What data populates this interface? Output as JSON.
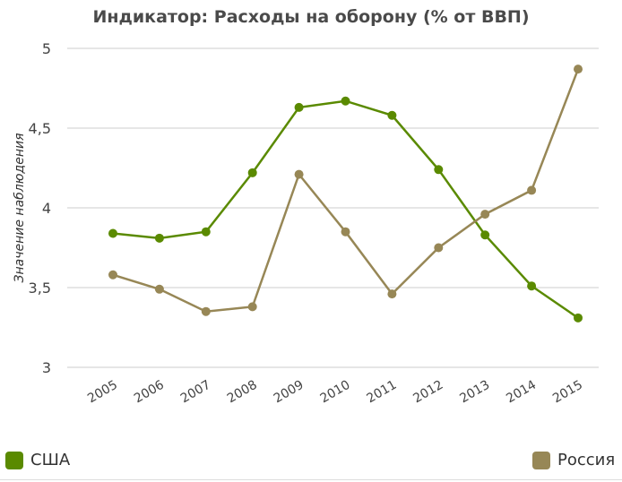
{
  "chart_data": {
    "type": "line",
    "title": "Индикатор: Расходы на оборону (% от ВВП)",
    "xlabel": "",
    "ylabel": "Значение наблюдения",
    "x": [
      2005,
      2006,
      2007,
      2008,
      2009,
      2010,
      2011,
      2012,
      2013,
      2014,
      2015
    ],
    "ylim": [
      3,
      5
    ],
    "yticks": [
      3,
      3.5,
      4,
      4.5,
      5
    ],
    "ytick_labels": [
      "3",
      "3,5",
      "4",
      "4,5",
      "5"
    ],
    "grid": true,
    "legend_placement": "bottom",
    "series": [
      {
        "name": "США",
        "color": "#5a8a00",
        "values": [
          3.84,
          3.81,
          3.85,
          4.22,
          4.63,
          4.67,
          4.58,
          4.24,
          3.83,
          3.51,
          3.31
        ]
      },
      {
        "name": "Россия",
        "color": "#978756",
        "values": [
          3.58,
          3.49,
          3.35,
          3.38,
          4.21,
          3.85,
          3.46,
          3.75,
          3.96,
          4.11,
          4.87
        ]
      }
    ]
  }
}
